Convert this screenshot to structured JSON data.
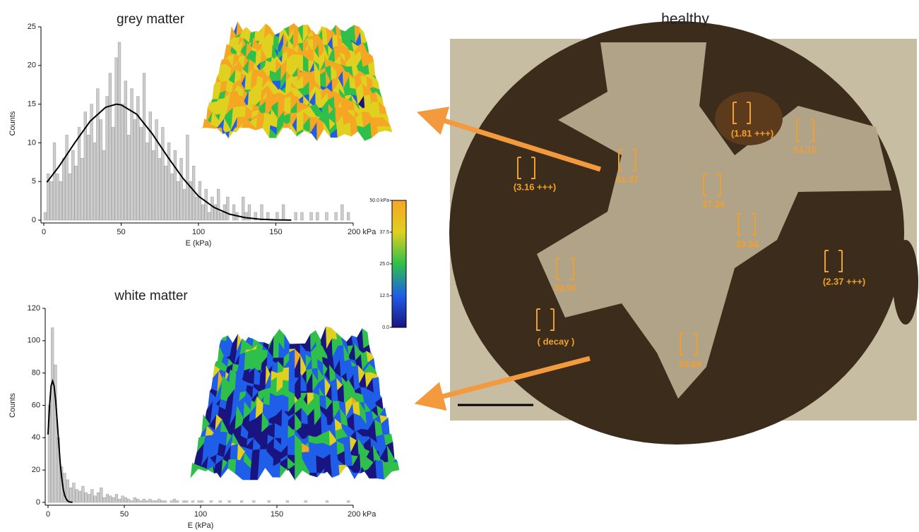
{
  "chart_data": [
    {
      "type": "histogram",
      "title": "grey matter",
      "xlabel": "E (kPa)",
      "ylabel": "Counts",
      "color": "#cccccc",
      "bins": [
        0,
        2,
        4,
        6,
        8,
        10,
        12,
        14,
        16,
        18,
        20,
        22,
        24,
        26,
        28,
        30,
        32,
        34,
        36,
        38,
        40,
        42,
        44,
        46,
        48,
        50,
        52,
        54,
        56,
        58,
        60,
        62,
        64,
        66,
        68,
        70,
        72,
        74,
        76,
        78,
        80,
        82,
        84,
        86,
        88,
        90,
        92,
        94,
        96,
        98,
        100,
        102,
        104,
        106,
        108,
        110,
        112,
        114,
        116,
        118,
        120,
        122,
        124,
        126,
        128,
        130,
        132,
        134,
        136,
        138,
        140,
        142,
        144,
        146,
        148,
        150,
        152,
        154,
        156,
        158,
        160,
        162,
        164,
        166,
        168,
        170,
        172,
        174,
        176,
        178,
        180,
        182,
        184,
        186,
        188,
        190,
        192,
        194,
        196,
        198,
        200
      ],
      "values": [
        1,
        6,
        5,
        10,
        6,
        5,
        8,
        11,
        6,
        9,
        7,
        12,
        8,
        14,
        11,
        15,
        10,
        17,
        13,
        9,
        16,
        19,
        12,
        21,
        23,
        15,
        18,
        11,
        17,
        13,
        16,
        12,
        19,
        10,
        14,
        9,
        13,
        8,
        12,
        7,
        10,
        6,
        9,
        5,
        8,
        4,
        11,
        5,
        7,
        3,
        5,
        2,
        4,
        1,
        3,
        2,
        4,
        1,
        2,
        3,
        0,
        2,
        1,
        0,
        3,
        1,
        2,
        0,
        1,
        0,
        2,
        0,
        1,
        0,
        0,
        1,
        0,
        2,
        0,
        0,
        0,
        1,
        0,
        1,
        0,
        0,
        1,
        0,
        1,
        0,
        0,
        1,
        0,
        0,
        1,
        0,
        2,
        0,
        1,
        0
      ],
      "fit": {
        "color": "#000000",
        "x": [
          2,
          10,
          20,
          30,
          40,
          47,
          50,
          60,
          70,
          80,
          90,
          100,
          110,
          120,
          130,
          140,
          150,
          160
        ],
        "y": [
          4.9,
          7.0,
          10.0,
          12.8,
          14.6,
          15,
          14.9,
          13.7,
          11.2,
          8.2,
          5.4,
          3.1,
          1.65,
          0.78,
          0.33,
          0.12,
          0.04,
          0.01
        ]
      },
      "xlim": [
        0,
        200
      ],
      "xticks": [
        0,
        50,
        100,
        150,
        {
          "value": 200,
          "label": "200 kPa"
        }
      ],
      "ylim": [
        0,
        25
      ],
      "yticks": [
        0,
        5,
        10,
        15,
        20,
        25
      ]
    },
    {
      "type": "histogram",
      "title": "white matter",
      "xlabel": "E (kPa)",
      "ylabel": "Counts",
      "color": "#cccccc",
      "bins": [
        0,
        2,
        4,
        6,
        8,
        10,
        12,
        14,
        16,
        18,
        20,
        22,
        24,
        26,
        28,
        30,
        32,
        34,
        36,
        38,
        40,
        42,
        44,
        46,
        48,
        50,
        52,
        54,
        56,
        58,
        60,
        62,
        64,
        66,
        68,
        70,
        72,
        74,
        76,
        78,
        80,
        82,
        84,
        86,
        88,
        90,
        92,
        94,
        96,
        98,
        100,
        102,
        104,
        106,
        108,
        110,
        112,
        114,
        116,
        118,
        120,
        122,
        124,
        126,
        128,
        130,
        132,
        134,
        136,
        138,
        140,
        142,
        144,
        146,
        148,
        150,
        152,
        154,
        156,
        158,
        160,
        162,
        164,
        166,
        168,
        170,
        172,
        174,
        176,
        178,
        180,
        182,
        184,
        186,
        188,
        190,
        192,
        194,
        196,
        198,
        200
      ],
      "values": [
        60,
        108,
        85,
        40,
        22,
        18,
        14,
        9,
        12,
        8,
        7,
        10,
        6,
        5,
        8,
        4,
        6,
        9,
        3,
        5,
        4,
        3,
        5,
        2,
        4,
        3,
        2,
        1,
        3,
        2,
        1,
        2,
        1,
        2,
        1,
        1,
        2,
        1,
        1,
        0,
        1,
        2,
        1,
        0,
        1,
        1,
        0,
        1,
        0,
        1,
        1,
        0,
        0,
        1,
        0,
        0,
        1,
        0,
        0,
        1,
        0,
        0,
        0,
        1,
        0,
        0,
        0,
        1,
        0,
        0,
        0,
        0,
        1,
        0,
        0,
        0,
        0,
        0,
        1,
        0,
        0,
        0,
        0,
        0,
        1,
        0,
        0,
        0,
        0,
        0,
        0,
        1,
        0,
        0,
        0,
        0,
        0,
        0,
        1,
        0
      ],
      "fit": {
        "color": "#000000",
        "x": [
          0,
          1,
          2,
          3,
          4,
          5,
          6,
          7,
          8,
          9,
          10,
          11,
          12,
          13,
          14,
          16
        ],
        "y": [
          42,
          60,
          72,
          75,
          72,
          63,
          50,
          37,
          24,
          15,
          8,
          4,
          2,
          0.8,
          0.3,
          0
        ]
      },
      "xlim": [
        0,
        200
      ],
      "xticks": [
        0,
        50,
        100,
        150,
        {
          "value": 200,
          "label": "200 kPa"
        }
      ],
      "ylim": [
        0,
        120
      ],
      "yticks": [
        0,
        20,
        40,
        60,
        80,
        100,
        120
      ]
    },
    {
      "type": "colorbar",
      "colors": [
        "#1a1480",
        "#1f5ee8",
        "#2ec04a",
        "#e0d020",
        "#f5a623"
      ],
      "ylim": [
        0,
        50
      ],
      "yticks": [
        {
          "value": 0,
          "label": "0.0"
        },
        12.5,
        {
          "value": 25,
          "label": "25.0"
        },
        37.5,
        {
          "value": 50,
          "label": "50.0 kPa"
        }
      ]
    }
  ],
  "figure": {
    "title": "healthy",
    "labels": [
      "(1.81 +++)",
      "51.10",
      "41.37",
      "(3.16 +++)",
      "37.36",
      "39.56",
      "(2.37 +++)",
      "39.90",
      "( decay )",
      "39.69"
    ]
  }
}
